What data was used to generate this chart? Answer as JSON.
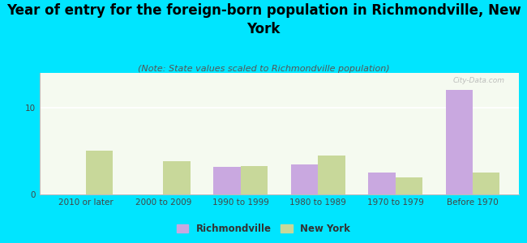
{
  "title": "Year of entry for the foreign-born population in Richmondville, New\nYork",
  "subtitle": "(Note: State values scaled to Richmondville population)",
  "categories": [
    "2010 or later",
    "2000 to 2009",
    "1990 to 1999",
    "1980 to 1989",
    "1970 to 1979",
    "Before 1970"
  ],
  "richmondville": [
    0,
    0,
    3.2,
    3.5,
    2.5,
    12.0
  ],
  "new_york": [
    5.0,
    3.8,
    3.3,
    4.5,
    2.0,
    2.5
  ],
  "richmondville_color": "#c9a8e0",
  "new_york_color": "#c8d89a",
  "background_outer": "#00e5ff",
  "background_plot_top": "#e0f0e0",
  "background_plot_bottom": "#f5faf0",
  "ylim": [
    0,
    14
  ],
  "yticks": [
    0,
    10
  ],
  "bar_width": 0.35,
  "title_fontsize": 12,
  "subtitle_fontsize": 8,
  "tick_fontsize": 7.5,
  "legend_fontsize": 8.5
}
